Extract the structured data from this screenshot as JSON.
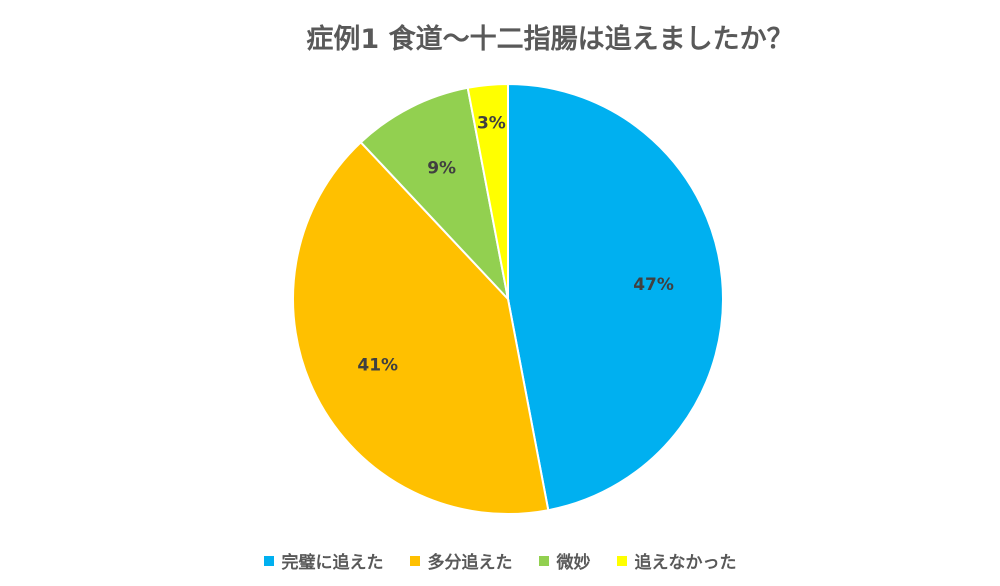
{
  "chart_data": {
    "type": "pie",
    "title": "症例1  食道～十二指腸は追えましたか？",
    "categories": [
      "完璧に追えた",
      "多分追えた",
      "微妙",
      "追えなかった"
    ],
    "values": [
      47,
      41,
      9,
      3
    ],
    "value_labels": [
      "47%",
      "41%",
      "9%",
      "3%"
    ],
    "colors": [
      "#00b0f0",
      "#ffc000",
      "#92d050",
      "#ffff00"
    ],
    "legend": "bottom"
  }
}
